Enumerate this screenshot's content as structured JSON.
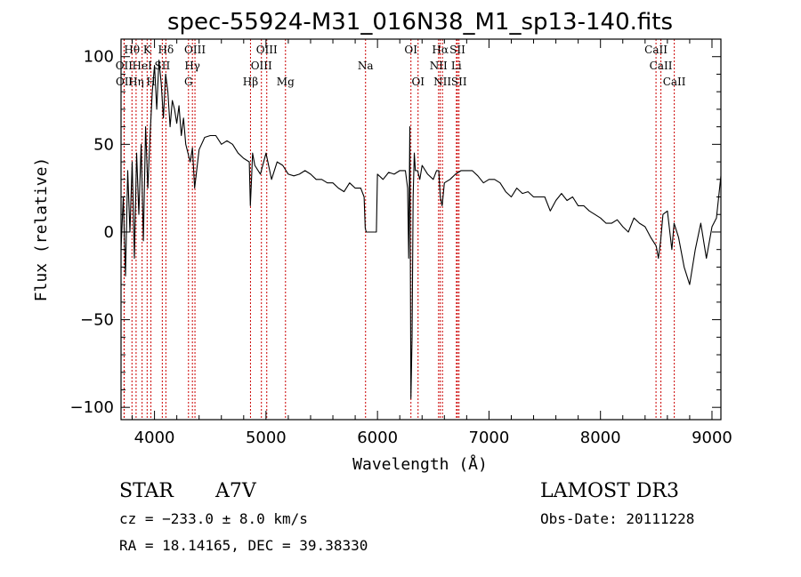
{
  "chart_data": {
    "type": "line",
    "title": "spec-55924-M31_016N38_M1_sp13-140.fits",
    "xlabel": "Wavelength (Å)",
    "ylabel": "Flux (relative)",
    "xlim": [
      3700,
      9080
    ],
    "ylim": [
      -107,
      110
    ],
    "xticks": [
      4000,
      5000,
      6000,
      7000,
      8000,
      9000
    ],
    "yticks": [
      -100,
      -50,
      0,
      50,
      100
    ],
    "grid": false,
    "series": [
      {
        "name": "spectrum",
        "x": [
          3700,
          3720,
          3740,
          3760,
          3780,
          3800,
          3820,
          3840,
          3860,
          3880,
          3900,
          3920,
          3940,
          3960,
          3980,
          4000,
          4020,
          4040,
          4060,
          4080,
          4100,
          4120,
          4140,
          4160,
          4180,
          4200,
          4220,
          4240,
          4260,
          4280,
          4300,
          4320,
          4340,
          4360,
          4400,
          4450,
          4500,
          4550,
          4600,
          4650,
          4700,
          4750,
          4800,
          4850,
          4860,
          4870,
          4880,
          4900,
          4950,
          5000,
          5050,
          5100,
          5150,
          5200,
          5250,
          5300,
          5350,
          5400,
          5450,
          5500,
          5550,
          5600,
          5650,
          5700,
          5750,
          5800,
          5850,
          5880,
          5890,
          5900,
          5950,
          5990,
          6000,
          6050,
          6100,
          6150,
          6200,
          6250,
          6270,
          6280,
          6290,
          6300,
          6310,
          6320,
          6330,
          6340,
          6360,
          6380,
          6400,
          6450,
          6500,
          6530,
          6550,
          6563,
          6580,
          6600,
          6650,
          6700,
          6750,
          6800,
          6850,
          6900,
          6950,
          7000,
          7050,
          7100,
          7150,
          7200,
          7250,
          7300,
          7350,
          7400,
          7450,
          7500,
          7550,
          7600,
          7650,
          7700,
          7750,
          7800,
          7850,
          7900,
          7950,
          8000,
          8050,
          8100,
          8150,
          8200,
          8250,
          8300,
          8350,
          8400,
          8450,
          8500,
          8520,
          8540,
          8560,
          8600,
          8640,
          8660,
          8700,
          8750,
          8800,
          8850,
          8900,
          8950,
          9000,
          9040,
          9060,
          9080
        ],
        "y": [
          -10,
          20,
          -25,
          35,
          0,
          40,
          -15,
          45,
          10,
          50,
          -5,
          60,
          25,
          55,
          80,
          95,
          70,
          98,
          85,
          65,
          90,
          80,
          60,
          75,
          70,
          62,
          72,
          55,
          65,
          50,
          45,
          40,
          48,
          25,
          47,
          54,
          55,
          55,
          50,
          52,
          50,
          45,
          42,
          40,
          15,
          30,
          45,
          38,
          33,
          45,
          30,
          40,
          38,
          33,
          32,
          33,
          35,
          33,
          30,
          30,
          28,
          28,
          25,
          23,
          28,
          25,
          25,
          20,
          2,
          0,
          0,
          0,
          33,
          30,
          34,
          33,
          35,
          35,
          25,
          -15,
          60,
          -95,
          -60,
          20,
          45,
          35,
          35,
          30,
          38,
          33,
          30,
          35,
          35,
          20,
          15,
          28,
          30,
          33,
          35,
          35,
          35,
          32,
          28,
          30,
          30,
          28,
          23,
          20,
          25,
          22,
          23,
          20,
          20,
          20,
          12,
          18,
          22,
          18,
          20,
          15,
          15,
          12,
          10,
          8,
          5,
          5,
          7,
          3,
          0,
          8,
          5,
          3,
          -3,
          -8,
          -15,
          -5,
          10,
          12,
          -10,
          5,
          -3,
          -20,
          -30,
          -10,
          5,
          -15,
          3,
          8,
          20,
          32
        ]
      }
    ],
    "lines": [
      {
        "label": "Hθ",
        "wl": 3798,
        "row": 0
      },
      {
        "label": "OII",
        "wl": 3727,
        "row": 1
      },
      {
        "label": "OII",
        "wl": 3729,
        "row": 2
      },
      {
        "label": "Hη",
        "wl": 3835,
        "row": 2
      },
      {
        "label": "HeI",
        "wl": 3889,
        "row": 1
      },
      {
        "label": "K",
        "wl": 3934,
        "row": 0
      },
      {
        "label": "H",
        "wl": 3968,
        "row": 2
      },
      {
        "label": "SII",
        "wl": 4070,
        "row": 1
      },
      {
        "label": "Hδ",
        "wl": 4102,
        "row": 0
      },
      {
        "label": "OIII",
        "wl": 4363,
        "row": 0
      },
      {
        "label": "Hγ",
        "wl": 4340,
        "row": 1
      },
      {
        "label": "G",
        "wl": 4305,
        "row": 2
      },
      {
        "label": "Hβ",
        "wl": 4861,
        "row": 2
      },
      {
        "label": "OIII",
        "wl": 4959,
        "row": 1
      },
      {
        "label": "OIII",
        "wl": 5007,
        "row": 0
      },
      {
        "label": "Mg",
        "wl": 5175,
        "row": 2
      },
      {
        "label": "Na",
        "wl": 5893,
        "row": 1
      },
      {
        "label": "OI",
        "wl": 6300,
        "row": 0
      },
      {
        "label": "OI",
        "wl": 6364,
        "row": 2
      },
      {
        "label": "Hα",
        "wl": 6563,
        "row": 0
      },
      {
        "label": "NII",
        "wl": 6548,
        "row": 1
      },
      {
        "label": "NII",
        "wl": 6583,
        "row": 2
      },
      {
        "label": "SII",
        "wl": 6717,
        "row": 0
      },
      {
        "label": "Li",
        "wl": 6708,
        "row": 1
      },
      {
        "label": "SII",
        "wl": 6731,
        "row": 2
      },
      {
        "label": "CaII",
        "wl": 8498,
        "row": 0
      },
      {
        "label": "CaII",
        "wl": 8542,
        "row": 1
      },
      {
        "label": "CaII",
        "wl": 8662,
        "row": 2
      }
    ],
    "line_color": "#cc0000"
  },
  "info": {
    "class": "STAR",
    "subclass": "A7V",
    "survey": "LAMOST DR3",
    "cz": "cz = −233.0 ± 8.0 km/s",
    "obs_date": "Obs-Date: 20111228",
    "radec": "RA =  18.14165, DEC =  39.38330"
  }
}
